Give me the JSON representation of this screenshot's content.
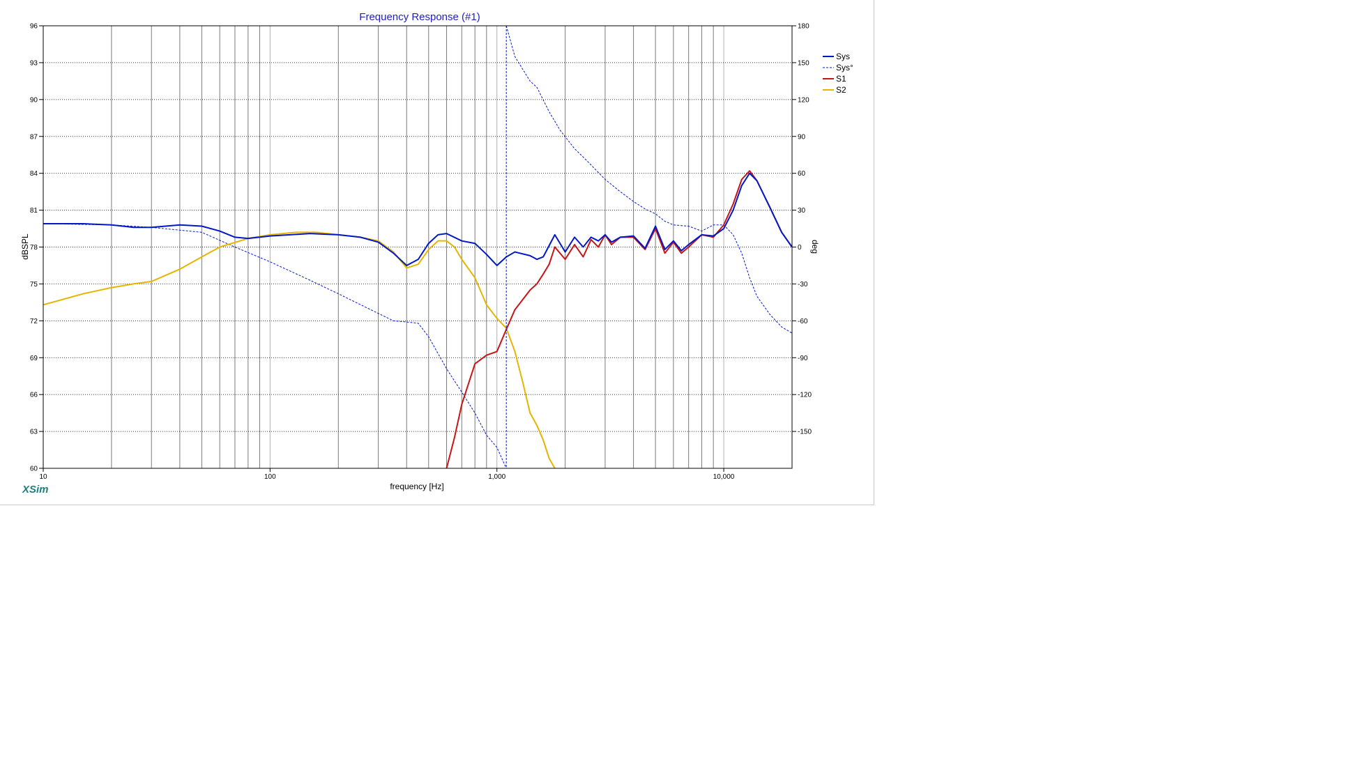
{
  "app": {
    "brand": "XSim"
  },
  "chart_data": {
    "type": "line",
    "title": "Frequency Response (#1)",
    "xlabel": "frequency [Hz]",
    "ylabel": "dBSPL",
    "y2label": "deg",
    "xscale": "log",
    "xlim": [
      10,
      20000
    ],
    "ylim": [
      60,
      96
    ],
    "y2lim": [
      -180,
      180
    ],
    "x_ticks": [
      {
        "value": 10,
        "label": "10"
      },
      {
        "value": 100,
        "label": "100"
      },
      {
        "value": 1000,
        "label": "1,000"
      },
      {
        "value": 10000,
        "label": "10,000"
      }
    ],
    "y_ticks": [
      "60",
      "63",
      "66",
      "69",
      "72",
      "75",
      "78",
      "81",
      "84",
      "87",
      "90",
      "93",
      "96"
    ],
    "y2_ticks": [
      "-150",
      "-120",
      "-90",
      "-60",
      "-30",
      "0",
      "30",
      "60",
      "90",
      "120",
      "150",
      "180"
    ],
    "legend_position": "right",
    "series": [
      {
        "name": "Sys",
        "axis": "left",
        "style": "solid",
        "width": 2,
        "color": "#0018c8",
        "points": [
          [
            10,
            79.9
          ],
          [
            15,
            79.9
          ],
          [
            20,
            79.8
          ],
          [
            25,
            79.6
          ],
          [
            30,
            79.6
          ],
          [
            40,
            79.8
          ],
          [
            50,
            79.7
          ],
          [
            60,
            79.3
          ],
          [
            70,
            78.8
          ],
          [
            80,
            78.7
          ],
          [
            100,
            78.9
          ],
          [
            150,
            79.1
          ],
          [
            200,
            79.0
          ],
          [
            250,
            78.8
          ],
          [
            300,
            78.4
          ],
          [
            350,
            77.5
          ],
          [
            400,
            76.5
          ],
          [
            450,
            77.0
          ],
          [
            500,
            78.3
          ],
          [
            550,
            79.0
          ],
          [
            600,
            79.1
          ],
          [
            700,
            78.5
          ],
          [
            800,
            78.3
          ],
          [
            900,
            77.4
          ],
          [
            1000,
            76.5
          ],
          [
            1100,
            77.2
          ],
          [
            1200,
            77.6
          ],
          [
            1400,
            77.3
          ],
          [
            1500,
            77.0
          ],
          [
            1600,
            77.2
          ],
          [
            1800,
            79.0
          ],
          [
            2000,
            77.6
          ],
          [
            2200,
            78.8
          ],
          [
            2400,
            78.0
          ],
          [
            2600,
            78.8
          ],
          [
            2800,
            78.5
          ],
          [
            3000,
            79.0
          ],
          [
            3200,
            78.4
          ],
          [
            3500,
            78.8
          ],
          [
            4000,
            78.9
          ],
          [
            4500,
            77.9
          ],
          [
            5000,
            79.7
          ],
          [
            5500,
            77.8
          ],
          [
            6000,
            78.5
          ],
          [
            6500,
            77.7
          ],
          [
            7000,
            78.2
          ],
          [
            8000,
            79.0
          ],
          [
            9000,
            78.9
          ],
          [
            10000,
            79.5
          ],
          [
            11000,
            81.0
          ],
          [
            12000,
            83.0
          ],
          [
            13000,
            84.0
          ],
          [
            14000,
            83.4
          ],
          [
            16000,
            81.2
          ],
          [
            18000,
            79.2
          ],
          [
            20000,
            78.0
          ]
        ]
      },
      {
        "name": "Sys°",
        "axis": "right",
        "style": "dashed",
        "width": 1,
        "color": "#0018c8",
        "points": [
          [
            10,
            19
          ],
          [
            20,
            18
          ],
          [
            30,
            16
          ],
          [
            50,
            12
          ],
          [
            70,
            0
          ],
          [
            100,
            -12
          ],
          [
            150,
            -27
          ],
          [
            200,
            -38
          ],
          [
            300,
            -54
          ],
          [
            350,
            -60
          ],
          [
            400,
            -61
          ],
          [
            450,
            -62
          ],
          [
            500,
            -73
          ],
          [
            600,
            -99
          ],
          [
            700,
            -118
          ],
          [
            800,
            -135
          ],
          [
            900,
            -153
          ],
          [
            1000,
            -163
          ],
          [
            1100,
            -180
          ],
          [
            1100,
            180
          ],
          [
            1200,
            155
          ],
          [
            1400,
            135
          ],
          [
            1500,
            130
          ],
          [
            1700,
            110
          ],
          [
            1900,
            95
          ],
          [
            2200,
            80
          ],
          [
            2500,
            70
          ],
          [
            3000,
            55
          ],
          [
            3500,
            45
          ],
          [
            4000,
            37
          ],
          [
            4500,
            31
          ],
          [
            5000,
            27
          ],
          [
            5500,
            21
          ],
          [
            6000,
            18
          ],
          [
            7000,
            17
          ],
          [
            8000,
            13
          ],
          [
            9000,
            18
          ],
          [
            10000,
            18
          ],
          [
            11000,
            10
          ],
          [
            12000,
            -5
          ],
          [
            13000,
            -25
          ],
          [
            14000,
            -40
          ],
          [
            16000,
            -55
          ],
          [
            18000,
            -65
          ],
          [
            20000,
            -70
          ]
        ]
      },
      {
        "name": "S1",
        "axis": "left",
        "style": "solid",
        "width": 2,
        "color": "#c81414",
        "points": [
          [
            600,
            60
          ],
          [
            650,
            62.5
          ],
          [
            700,
            65.2
          ],
          [
            800,
            68.5
          ],
          [
            900,
            69.2
          ],
          [
            1000,
            69.5
          ],
          [
            1100,
            71.3
          ],
          [
            1200,
            72.9
          ],
          [
            1400,
            74.5
          ],
          [
            1500,
            75.0
          ],
          [
            1600,
            75.8
          ],
          [
            1700,
            76.6
          ],
          [
            1800,
            78.0
          ],
          [
            2000,
            77.0
          ],
          [
            2200,
            78.2
          ],
          [
            2400,
            77.2
          ],
          [
            2600,
            78.6
          ],
          [
            2800,
            78.0
          ],
          [
            3000,
            79.0
          ],
          [
            3200,
            78.2
          ],
          [
            3500,
            78.8
          ],
          [
            4000,
            78.8
          ],
          [
            4500,
            77.8
          ],
          [
            5000,
            79.5
          ],
          [
            5500,
            77.5
          ],
          [
            6000,
            78.4
          ],
          [
            6500,
            77.5
          ],
          [
            7000,
            78.0
          ],
          [
            8000,
            79.0
          ],
          [
            9000,
            78.8
          ],
          [
            10000,
            79.8
          ],
          [
            11000,
            81.5
          ],
          [
            12000,
            83.5
          ],
          [
            13000,
            84.2
          ],
          [
            14000,
            83.4
          ],
          [
            16000,
            81.2
          ],
          [
            18000,
            79.2
          ],
          [
            20000,
            78.0
          ]
        ]
      },
      {
        "name": "S2",
        "axis": "left",
        "style": "solid",
        "width": 2,
        "color": "#e6b400",
        "points": [
          [
            10,
            73.3
          ],
          [
            15,
            74.2
          ],
          [
            20,
            74.7
          ],
          [
            25,
            75.0
          ],
          [
            30,
            75.2
          ],
          [
            40,
            76.2
          ],
          [
            50,
            77.2
          ],
          [
            60,
            78.0
          ],
          [
            80,
            78.7
          ],
          [
            100,
            79.0
          ],
          [
            130,
            79.2
          ],
          [
            160,
            79.2
          ],
          [
            200,
            79.0
          ],
          [
            250,
            78.8
          ],
          [
            300,
            78.5
          ],
          [
            350,
            77.6
          ],
          [
            400,
            76.3
          ],
          [
            450,
            76.6
          ],
          [
            500,
            77.8
          ],
          [
            550,
            78.5
          ],
          [
            600,
            78.5
          ],
          [
            650,
            78.0
          ],
          [
            700,
            77.0
          ],
          [
            800,
            75.5
          ],
          [
            900,
            73.3
          ],
          [
            1000,
            72.2
          ],
          [
            1100,
            71.4
          ],
          [
            1200,
            69.5
          ],
          [
            1300,
            67.0
          ],
          [
            1400,
            64.5
          ],
          [
            1500,
            63.5
          ],
          [
            1600,
            62.3
          ],
          [
            1700,
            60.8
          ],
          [
            1800,
            60.0
          ]
        ]
      }
    ]
  }
}
